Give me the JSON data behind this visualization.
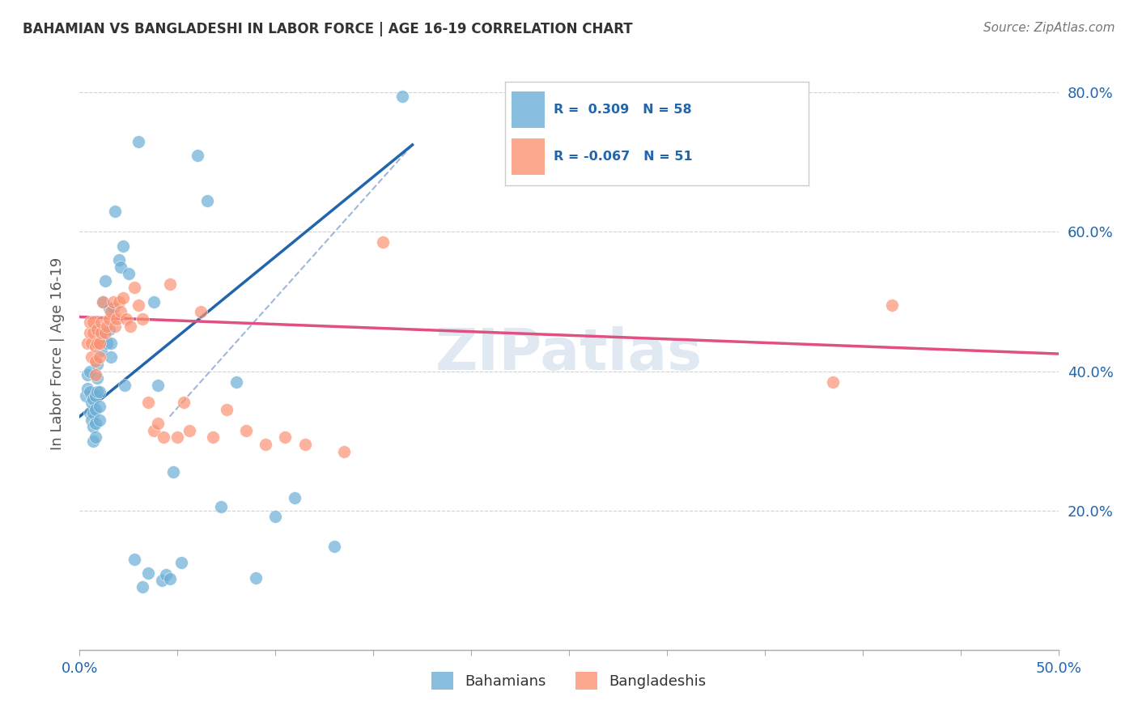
{
  "title": "BAHAMIAN VS BANGLADESHI IN LABOR FORCE | AGE 16-19 CORRELATION CHART",
  "source": "Source: ZipAtlas.com",
  "ylabel": "In Labor Force | Age 16-19",
  "xlim": [
    0.0,
    0.5
  ],
  "ylim": [
    0.0,
    0.85
  ],
  "bahamian_color": "#6baed6",
  "bangladeshi_color": "#fc9272",
  "blue_line_color": "#2166ac",
  "pink_line_color": "#e05080",
  "dashed_line_color": "#a0b8d8",
  "watermark": "ZIPatlas",
  "bahamian_x": [
    0.003,
    0.004,
    0.004,
    0.005,
    0.005,
    0.005,
    0.006,
    0.006,
    0.007,
    0.007,
    0.007,
    0.007,
    0.008,
    0.008,
    0.008,
    0.008,
    0.009,
    0.009,
    0.009,
    0.01,
    0.01,
    0.01,
    0.011,
    0.011,
    0.012,
    0.013,
    0.014,
    0.015,
    0.015,
    0.016,
    0.016,
    0.017,
    0.018,
    0.02,
    0.021,
    0.022,
    0.023,
    0.025,
    0.028,
    0.03,
    0.032,
    0.035,
    0.038,
    0.04,
    0.042,
    0.044,
    0.046,
    0.048,
    0.052,
    0.06,
    0.065,
    0.072,
    0.08,
    0.09,
    0.1,
    0.11,
    0.13,
    0.165
  ],
  "bahamian_y": [
    0.365,
    0.375,
    0.395,
    0.34,
    0.37,
    0.4,
    0.33,
    0.355,
    0.3,
    0.32,
    0.34,
    0.36,
    0.305,
    0.325,
    0.345,
    0.365,
    0.37,
    0.39,
    0.41,
    0.33,
    0.35,
    0.37,
    0.43,
    0.45,
    0.5,
    0.53,
    0.44,
    0.46,
    0.49,
    0.42,
    0.44,
    0.49,
    0.63,
    0.56,
    0.55,
    0.58,
    0.38,
    0.54,
    0.13,
    0.73,
    0.09,
    0.11,
    0.5,
    0.38,
    0.1,
    0.108,
    0.102,
    0.255,
    0.125,
    0.71,
    0.645,
    0.205,
    0.385,
    0.103,
    0.192,
    0.218,
    0.148,
    0.795
  ],
  "bangladeshi_x": [
    0.004,
    0.005,
    0.005,
    0.006,
    0.006,
    0.007,
    0.007,
    0.008,
    0.008,
    0.008,
    0.009,
    0.009,
    0.01,
    0.01,
    0.011,
    0.011,
    0.012,
    0.013,
    0.014,
    0.015,
    0.016,
    0.017,
    0.018,
    0.019,
    0.02,
    0.021,
    0.022,
    0.024,
    0.026,
    0.028,
    0.03,
    0.032,
    0.035,
    0.038,
    0.04,
    0.043,
    0.046,
    0.05,
    0.053,
    0.056,
    0.062,
    0.068,
    0.075,
    0.085,
    0.095,
    0.105,
    0.115,
    0.135,
    0.155,
    0.385,
    0.415
  ],
  "bangladeshi_y": [
    0.44,
    0.455,
    0.47,
    0.42,
    0.44,
    0.455,
    0.47,
    0.395,
    0.415,
    0.435,
    0.44,
    0.46,
    0.42,
    0.44,
    0.455,
    0.47,
    0.5,
    0.455,
    0.465,
    0.475,
    0.485,
    0.5,
    0.465,
    0.475,
    0.5,
    0.485,
    0.505,
    0.475,
    0.465,
    0.52,
    0.495,
    0.475,
    0.355,
    0.315,
    0.325,
    0.305,
    0.525,
    0.305,
    0.355,
    0.315,
    0.485,
    0.305,
    0.345,
    0.315,
    0.295,
    0.305,
    0.295,
    0.285,
    0.585,
    0.385,
    0.495
  ],
  "blue_trend_x": [
    0.0,
    0.17
  ],
  "blue_trend_y": [
    0.335,
    0.725
  ],
  "pink_trend_x": [
    0.0,
    0.5
  ],
  "pink_trend_y": [
    0.478,
    0.425
  ],
  "dashed_trend_x": [
    0.046,
    0.17
  ],
  "dashed_trend_y": [
    0.335,
    0.725
  ]
}
